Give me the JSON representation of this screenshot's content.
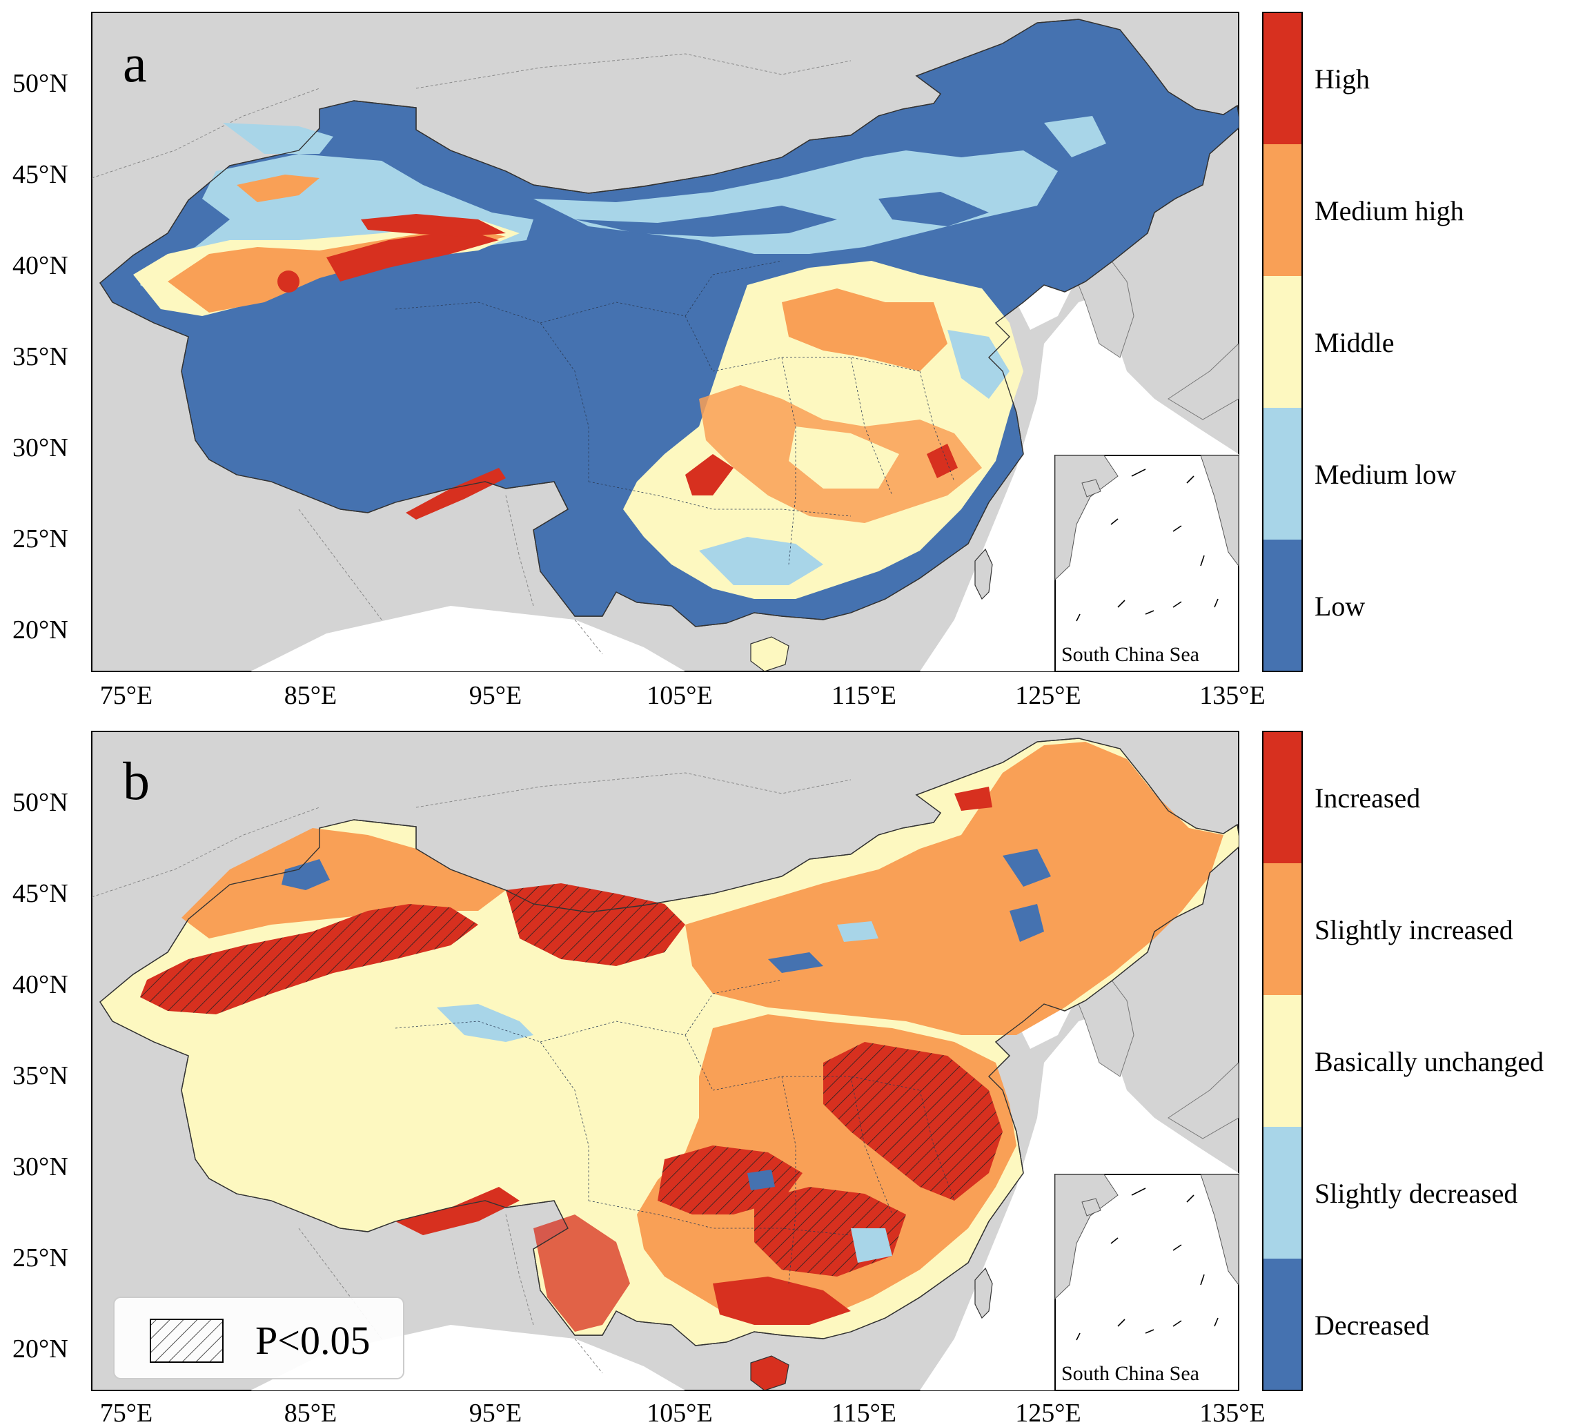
{
  "figure": {
    "panels": [
      {
        "label": "a",
        "legend": {
          "classes": [
            {
              "label": "High",
              "color": "#d7301f"
            },
            {
              "label": "Medium high",
              "color": "#f9a056"
            },
            {
              "label": "Middle",
              "color": "#fdf8c0"
            },
            {
              "label": "Medium low",
              "color": "#a8d5e8"
            },
            {
              "label": "Low",
              "color": "#4572b0"
            }
          ]
        },
        "inset_label": "South China Sea"
      },
      {
        "label": "b",
        "legend": {
          "classes": [
            {
              "label": "Increased",
              "color": "#d7301f"
            },
            {
              "label": "Slightly increased",
              "color": "#f9a056"
            },
            {
              "label": "Basically unchanged",
              "color": "#fdf8c0"
            },
            {
              "label": "Slightly decreased",
              "color": "#a8d5e8"
            },
            {
              "label": "Decreased",
              "color": "#4572b0"
            }
          ]
        },
        "significance_legend": "P<0.05",
        "inset_label": "South China Sea"
      }
    ],
    "lat_ticks": [
      "50°N",
      "45°N",
      "40°N",
      "35°N",
      "30°N",
      "25°N",
      "20°N"
    ],
    "lon_ticks": [
      "75°E",
      "85°E",
      "95°E",
      "105°E",
      "115°E",
      "125°E",
      "135°E"
    ],
    "colors": {
      "background_land": "#d4d4d4",
      "sea": "#ffffff",
      "border": "#333333"
    }
  }
}
